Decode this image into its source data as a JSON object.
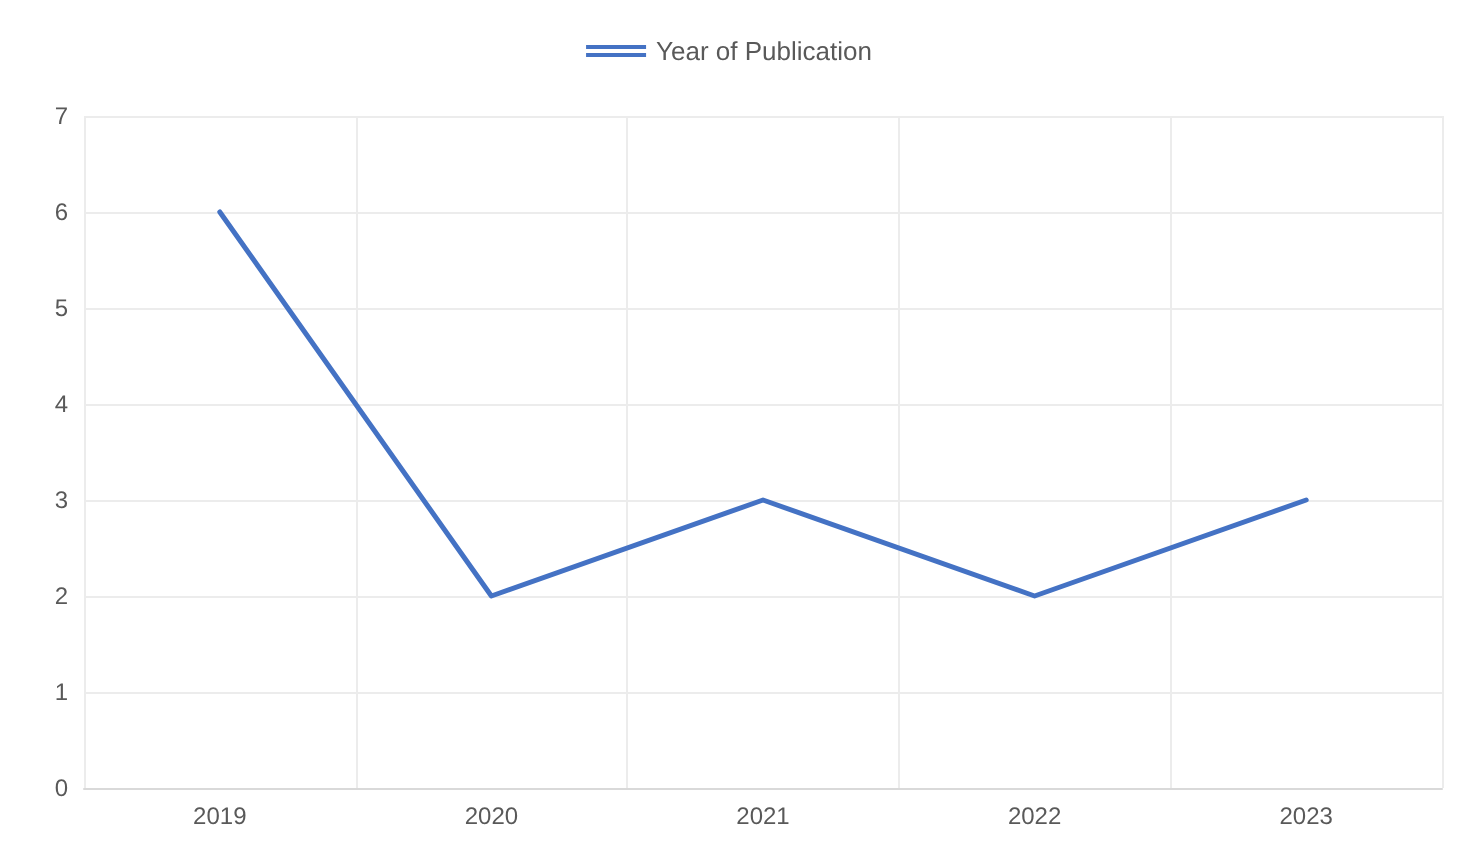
{
  "chart_data": {
    "type": "line",
    "categories": [
      "2019",
      "2020",
      "2021",
      "2022",
      "2023"
    ],
    "series": [
      {
        "name": "Year of Publication",
        "color": "#4472c4",
        "values": [
          6,
          2,
          3,
          2,
          3
        ]
      }
    ],
    "ylim": [
      0,
      7
    ],
    "yticks": [
      0,
      1,
      2,
      3,
      4,
      5,
      6,
      7
    ],
    "grid": true,
    "legend": "top",
    "marker": "none",
    "line_style": "solid"
  }
}
